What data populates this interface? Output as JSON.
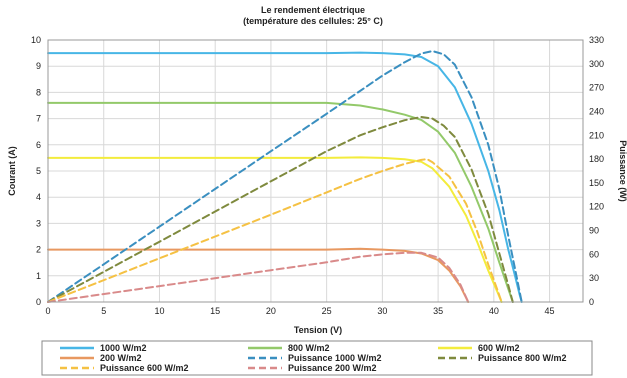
{
  "chart_data": {
    "type": "line",
    "title": "Le rendement électrique",
    "subtitle": "(température des cellules: 25° C)",
    "xlabel": "Tension (V)",
    "ylabel": "Courant (A)",
    "y2label": "Puissance (W)",
    "xlim": [
      0,
      48
    ],
    "ylim": [
      0,
      10
    ],
    "y2lim": [
      0,
      330
    ],
    "xticks": [
      "0",
      "5",
      "10",
      "15",
      "20",
      "25",
      "30",
      "35",
      "40",
      "45"
    ],
    "yticks": [
      "0",
      "1",
      "2",
      "3",
      "4",
      "5",
      "6",
      "7",
      "8",
      "9",
      "10"
    ],
    "y2ticks": [
      "0",
      "30",
      "60",
      "90",
      "120",
      "150",
      "180",
      "210",
      "240",
      "270",
      "300",
      "330"
    ],
    "grid": true,
    "legend_position": "bottom",
    "series": [
      {
        "name": "1000 W/m2",
        "axis": "left",
        "color": "#47b6e6",
        "dash": false,
        "points": [
          [
            0,
            9.5
          ],
          [
            25,
            9.5
          ],
          [
            28,
            9.52
          ],
          [
            30,
            9.5
          ],
          [
            32,
            9.45
          ],
          [
            33.5,
            9.35
          ],
          [
            35,
            9.0
          ],
          [
            36.5,
            8.2
          ],
          [
            38,
            6.8
          ],
          [
            39.5,
            5.0
          ],
          [
            40.5,
            3.5
          ],
          [
            41.3,
            2.0
          ],
          [
            41.9,
            1.0
          ],
          [
            42.3,
            0.3
          ],
          [
            42.5,
            0
          ]
        ]
      },
      {
        "name": "800 W/m2",
        "axis": "left",
        "color": "#93c96a",
        "dash": false,
        "points": [
          [
            0,
            7.6
          ],
          [
            20,
            7.6
          ],
          [
            25,
            7.6
          ],
          [
            28,
            7.5
          ],
          [
            30,
            7.35
          ],
          [
            32,
            7.15
          ],
          [
            33.5,
            6.95
          ],
          [
            35,
            6.5
          ],
          [
            36.5,
            5.7
          ],
          [
            38,
            4.4
          ],
          [
            39.5,
            2.8
          ],
          [
            40.5,
            1.5
          ],
          [
            41.3,
            0.5
          ],
          [
            41.7,
            0
          ]
        ]
      },
      {
        "name": "600 W/m2",
        "axis": "left",
        "color": "#f3ec3c",
        "dash": false,
        "points": [
          [
            0,
            5.5
          ],
          [
            25,
            5.5
          ],
          [
            28,
            5.52
          ],
          [
            30,
            5.5
          ],
          [
            32,
            5.45
          ],
          [
            33.5,
            5.35
          ],
          [
            34.5,
            5.1
          ],
          [
            36,
            4.4
          ],
          [
            37.5,
            3.3
          ],
          [
            38.5,
            2.3
          ],
          [
            39.5,
            1.2
          ],
          [
            40.3,
            0.4
          ],
          [
            40.7,
            0
          ]
        ]
      },
      {
        "name": "200 W/m2",
        "axis": "left",
        "color": "#e89860",
        "dash": false,
        "points": [
          [
            0,
            2.0
          ],
          [
            20,
            2.0
          ],
          [
            25,
            2.0
          ],
          [
            28,
            2.03
          ],
          [
            30,
            2.0
          ],
          [
            32,
            1.95
          ],
          [
            33.5,
            1.85
          ],
          [
            35,
            1.6
          ],
          [
            36,
            1.2
          ],
          [
            37,
            0.6
          ],
          [
            37.7,
            0
          ]
        ]
      },
      {
        "name": "Puissance 1000 W/m2",
        "axis": "right",
        "color": "#3a8fc0",
        "dash": true,
        "points": [
          [
            0,
            0
          ],
          [
            10,
            95
          ],
          [
            20,
            190
          ],
          [
            25,
            237
          ],
          [
            30,
            285
          ],
          [
            32,
            302
          ],
          [
            33.5,
            313
          ],
          [
            34.5,
            316
          ],
          [
            35.5,
            312
          ],
          [
            36.5,
            299
          ],
          [
            38,
            258
          ],
          [
            39.5,
            198
          ],
          [
            40.5,
            142
          ],
          [
            41.3,
            83
          ],
          [
            41.9,
            42
          ],
          [
            42.5,
            0
          ]
        ]
      },
      {
        "name": "Puissance 800 W/m2",
        "axis": "right",
        "color": "#7f8a3e",
        "dash": true,
        "points": [
          [
            0,
            0
          ],
          [
            10,
            76
          ],
          [
            20,
            152
          ],
          [
            25,
            190
          ],
          [
            28,
            210
          ],
          [
            30,
            220
          ],
          [
            32,
            229
          ],
          [
            33.5,
            233
          ],
          [
            34.5,
            231
          ],
          [
            35.5,
            222
          ],
          [
            36.5,
            208
          ],
          [
            38,
            167
          ],
          [
            39.5,
            111
          ],
          [
            40.5,
            61
          ],
          [
            41.3,
            21
          ],
          [
            41.7,
            0
          ]
        ]
      },
      {
        "name": "Puissance 600 W/m2",
        "axis": "right",
        "color": "#f5c143",
        "dash": true,
        "points": [
          [
            0,
            0
          ],
          [
            10,
            55
          ],
          [
            20,
            110
          ],
          [
            25,
            138
          ],
          [
            28,
            155
          ],
          [
            30,
            165
          ],
          [
            32,
            174
          ],
          [
            33.5,
            179
          ],
          [
            34,
            180
          ],
          [
            34.5,
            176
          ],
          [
            36,
            158
          ],
          [
            37.5,
            124
          ],
          [
            38.5,
            89
          ],
          [
            39.5,
            47
          ],
          [
            40.3,
            16
          ],
          [
            40.7,
            0
          ]
        ]
      },
      {
        "name": "Puissance 200 W/m2",
        "axis": "right",
        "color": "#d98a8a",
        "dash": true,
        "points": [
          [
            0,
            0
          ],
          [
            10,
            20
          ],
          [
            20,
            40
          ],
          [
            25,
            50
          ],
          [
            28,
            57
          ],
          [
            30,
            60
          ],
          [
            32,
            62
          ],
          [
            33.5,
            62
          ],
          [
            35,
            56
          ],
          [
            36,
            43
          ],
          [
            37,
            22
          ],
          [
            37.7,
            0
          ]
        ]
      }
    ]
  }
}
